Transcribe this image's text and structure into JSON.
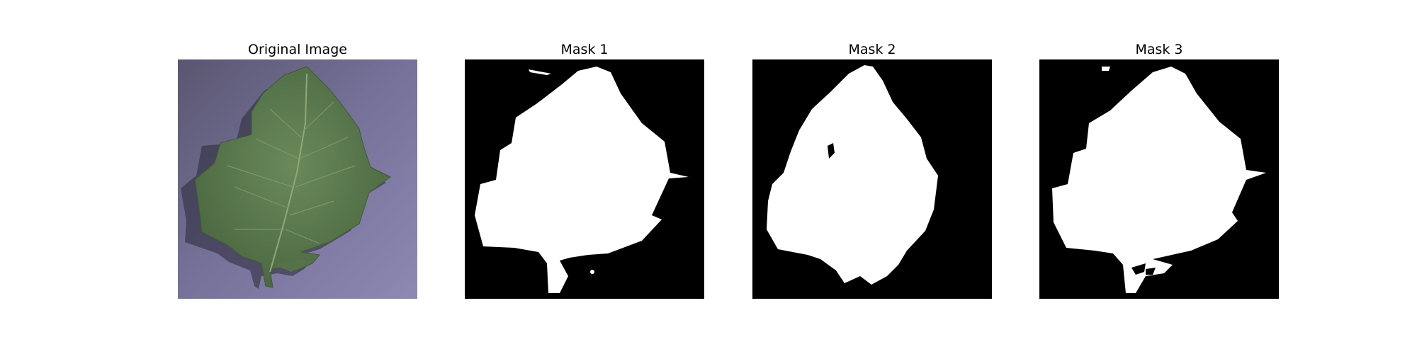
{
  "panels": [
    {
      "title": "Original Image",
      "kind": "photo"
    },
    {
      "title": "Mask 1",
      "kind": "mask"
    },
    {
      "title": "Mask 2",
      "kind": "mask"
    },
    {
      "title": "Mask 3",
      "kind": "mask"
    }
  ],
  "colors": {
    "background": "#ffffff",
    "photo_background": "#6f6b8f",
    "leaf_green": "#5c7a4e",
    "mask_background": "#000000",
    "mask_foreground": "#ffffff"
  }
}
